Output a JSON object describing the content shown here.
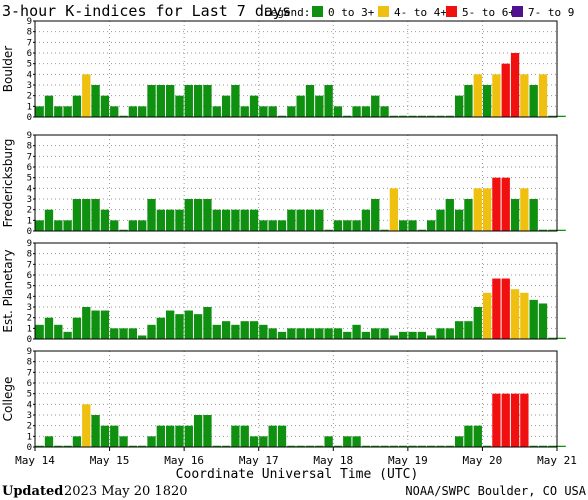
{
  "title": "3-hour K-indices for Last 7 days",
  "legend": {
    "label": "Legend:",
    "items": [
      {
        "label": "0 to 3+",
        "color": "#109010"
      },
      {
        "label": "4- to 4+",
        "color": "#f0c010"
      },
      {
        "label": "5- to 6+",
        "color": "#f01010"
      },
      {
        "label": "7- to 9",
        "color": "#501090"
      }
    ]
  },
  "footer": {
    "updated_label": "Updated",
    "updated_value": "2023 May 20 1820",
    "source": "NOAA/SWPC Boulder, CO USA"
  },
  "chart_data": {
    "type": "bar",
    "xlabel": "Coordinate Universal Time (UTC)",
    "x_ticks": [
      "May 14",
      "May 15",
      "May 16",
      "May 17",
      "May 18",
      "May 19",
      "May 20",
      "May 21"
    ],
    "interval_hours": 3,
    "ylim": [
      0,
      9
    ],
    "y_ticks": [
      0,
      1,
      2,
      3,
      4,
      5,
      6,
      7,
      8,
      9
    ],
    "grid": true,
    "color_thresholds": {
      "green_below": 4,
      "yellow_below": 5,
      "red_below": 7
    },
    "panels": [
      {
        "name": "Boulder",
        "values": [
          1,
          2,
          1,
          1,
          2,
          4,
          3,
          2,
          1,
          0,
          1,
          1,
          3,
          3,
          3,
          2,
          3,
          3,
          3,
          1,
          2,
          3,
          1,
          2,
          1,
          1,
          0,
          1,
          2,
          3,
          2,
          3,
          1,
          0,
          1,
          1,
          2,
          1,
          0,
          0,
          0,
          0,
          0,
          0,
          0,
          2,
          3,
          4,
          3,
          4,
          5,
          6,
          4,
          3,
          4,
          0,
          0
        ]
      },
      {
        "name": "Fredericksburg",
        "values": [
          1,
          2,
          1,
          1,
          3,
          3,
          3,
          2,
          1,
          0,
          1,
          1,
          3,
          2,
          2,
          2,
          3,
          3,
          3,
          2,
          2,
          2,
          2,
          2,
          1,
          1,
          1,
          2,
          2,
          2,
          2,
          0,
          1,
          1,
          1,
          2,
          3,
          0,
          4,
          1,
          1,
          0,
          1,
          2,
          3,
          2,
          3,
          4,
          4,
          5,
          5,
          3,
          4,
          3,
          0,
          0,
          0
        ]
      },
      {
        "name": "Est. Planetary",
        "values": [
          1.33,
          2,
          1.33,
          0.67,
          2,
          3,
          2.67,
          2.67,
          1,
          1,
          1,
          0.33,
          1.33,
          2,
          2.67,
          2.33,
          2.67,
          2.33,
          3,
          1.33,
          1.67,
          1.33,
          1.67,
          1.67,
          1.33,
          1,
          0.67,
          1,
          1,
          1,
          1,
          1,
          1,
          0.67,
          1.33,
          0.67,
          1,
          1,
          0.33,
          0.67,
          0.67,
          0.67,
          0.33,
          1,
          1,
          1.67,
          1.67,
          3,
          4.33,
          5.67,
          5.67,
          4.67,
          4.33,
          3.67,
          3.33,
          0,
          0
        ]
      },
      {
        "name": "College",
        "values": [
          0,
          1,
          0,
          0,
          1,
          4,
          3,
          2,
          2,
          1,
          0,
          0,
          1,
          2,
          2,
          2,
          2,
          3,
          3,
          0,
          0,
          2,
          2,
          1,
          1,
          2,
          2,
          0,
          0,
          0,
          0,
          1,
          0,
          1,
          1,
          0,
          0,
          0,
          0,
          0,
          0,
          0,
          0,
          0,
          0,
          1,
          2,
          2,
          0,
          5,
          5,
          5,
          5,
          0,
          0,
          0,
          0
        ]
      }
    ]
  }
}
